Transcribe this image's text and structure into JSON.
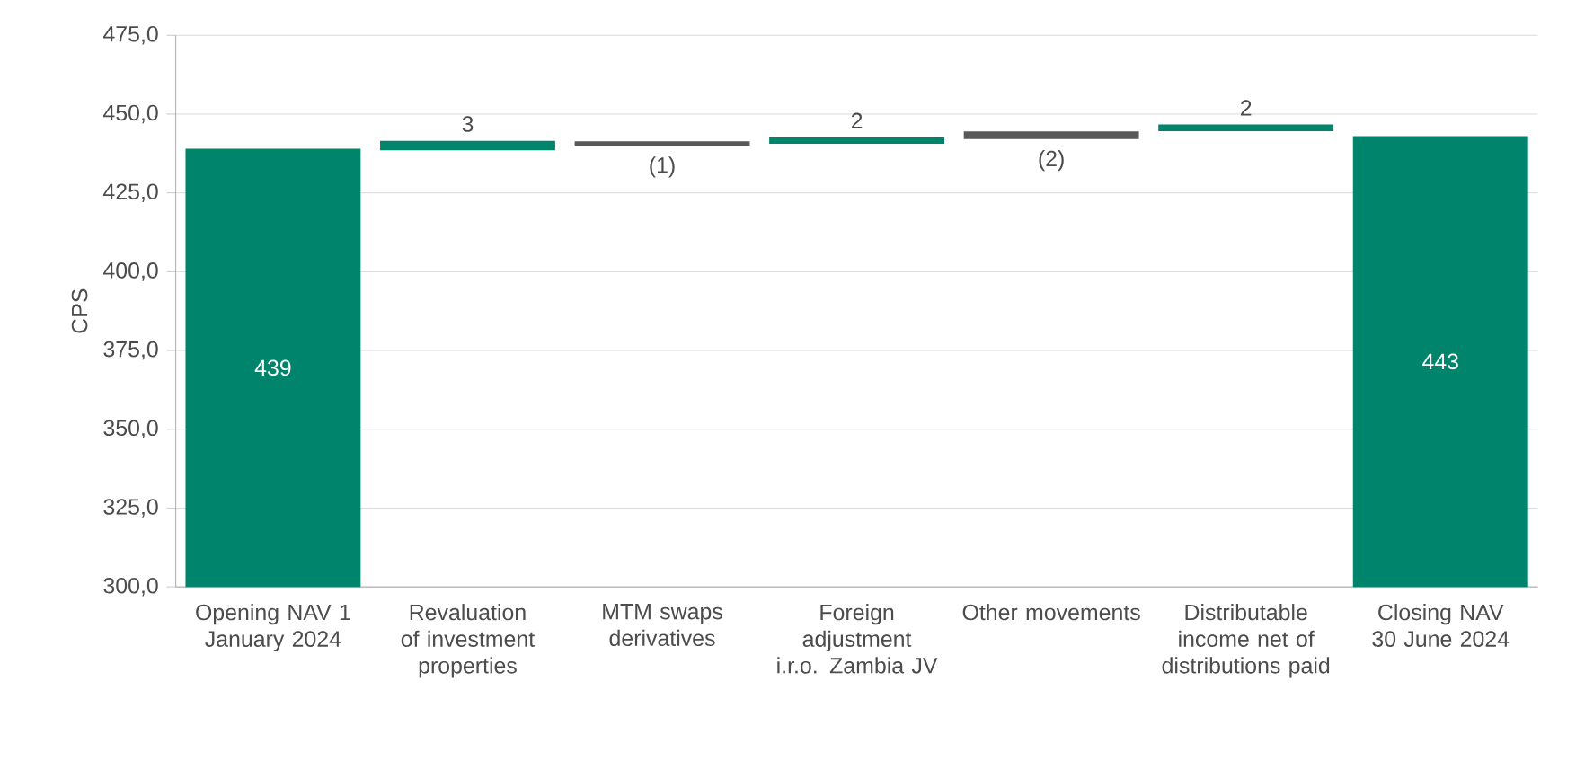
{
  "chart_data": {
    "type": "bar",
    "ylabel": "CPS",
    "categories": [
      "Opening NAV 1 January 2024",
      "Revaluation of investment properties",
      "MTM swaps derivatives",
      "Foreign adjustment i.r.o. Zambia JV",
      "Other movements",
      "Distributable income net of distributions paid",
      "Closing NAV 30 June 2024"
    ],
    "values": [
      439,
      3,
      -1.4,
      2,
      -2.4,
      2.1,
      443
    ],
    "base": [
      null,
      438.5,
      441.4,
      440.6,
      444.5,
      444.6,
      null
    ],
    "colors": [
      "#00846b",
      "#00846b",
      "#595959",
      "#00846b",
      "#595959",
      "#00846b",
      "#00846b"
    ],
    "value_labels": [
      "439",
      "3",
      "(1)",
      "2",
      "(2)",
      "2",
      "443"
    ],
    "ylim": [
      300,
      475
    ],
    "yticks": [
      {
        "value": 300,
        "label": "300,0"
      },
      {
        "value": 325,
        "label": "325,0"
      },
      {
        "value": 350,
        "label": "350,0"
      },
      {
        "value": 375,
        "label": "375,0"
      },
      {
        "value": 400,
        "label": "400,0"
      },
      {
        "value": 425,
        "label": "425,0"
      },
      {
        "value": 450,
        "label": "450,0"
      },
      {
        "value": 475,
        "label": "475,0"
      }
    ],
    "grid": "y"
  }
}
